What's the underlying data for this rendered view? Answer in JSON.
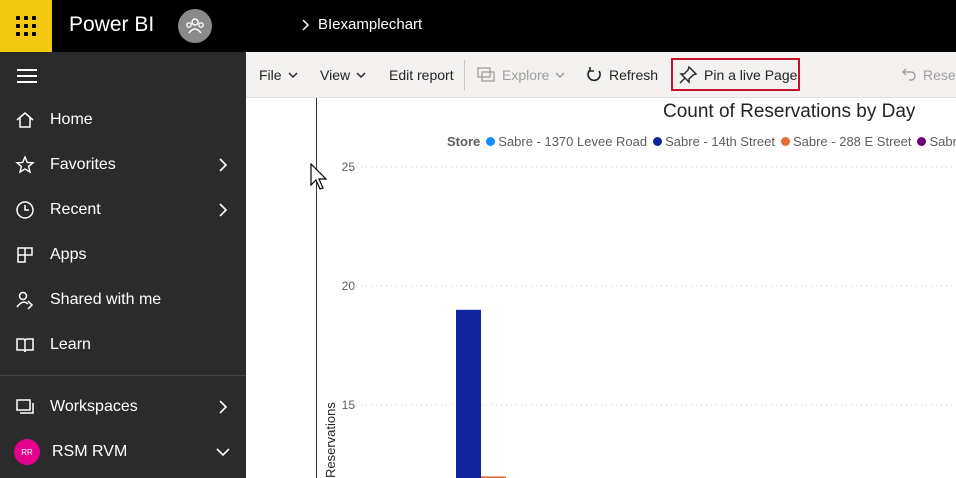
{
  "app": {
    "name": "Power BI",
    "breadcrumb": "BIexamplechart"
  },
  "sidebar": {
    "items": [
      {
        "label": "Home",
        "icon": "home-icon"
      },
      {
        "label": "Favorites",
        "icon": "star-icon",
        "expandable": true
      },
      {
        "label": "Recent",
        "icon": "clock-icon",
        "expandable": true
      },
      {
        "label": "Apps",
        "icon": "apps-icon"
      },
      {
        "label": "Shared with me",
        "icon": "shared-icon"
      },
      {
        "label": "Learn",
        "icon": "book-icon"
      }
    ],
    "workspaces": {
      "label": "Workspaces",
      "icon": "workspaces-icon"
    },
    "user": {
      "initials": "RR",
      "label": "RSM RVM"
    }
  },
  "toolbar": {
    "file": "File",
    "view": "View",
    "edit_report": "Edit report",
    "explore": "Explore",
    "refresh": "Refresh",
    "pin_live_page": "Pin a live Page",
    "reset": "Reset"
  },
  "colors": {
    "accent": "#f2c811",
    "highlight": "#c8102e",
    "series_1370": "#118dff",
    "series_14th": "#12239e",
    "series_288": "#e66c37",
    "series_4": "#6b007b"
  },
  "chart_data": {
    "type": "bar",
    "title": "Count of Reservations by Day",
    "ylabel": "Reservations",
    "legend_title": "Store",
    "legend_position": "top",
    "ylim_visible": [
      12,
      25
    ],
    "yticks": [
      15,
      20,
      25
    ],
    "grid": true,
    "series": [
      {
        "name": "Sabre - 1370 Levee Road",
        "color": "#118dff",
        "values": []
      },
      {
        "name": "Sabre - 14th Street",
        "color": "#12239e",
        "values": [
          19
        ]
      },
      {
        "name": "Sabre - 288 E Street",
        "color": "#e66c37",
        "values": [
          12
        ]
      },
      {
        "name": "Sabre -",
        "color": "#6b007b",
        "values": []
      }
    ]
  }
}
